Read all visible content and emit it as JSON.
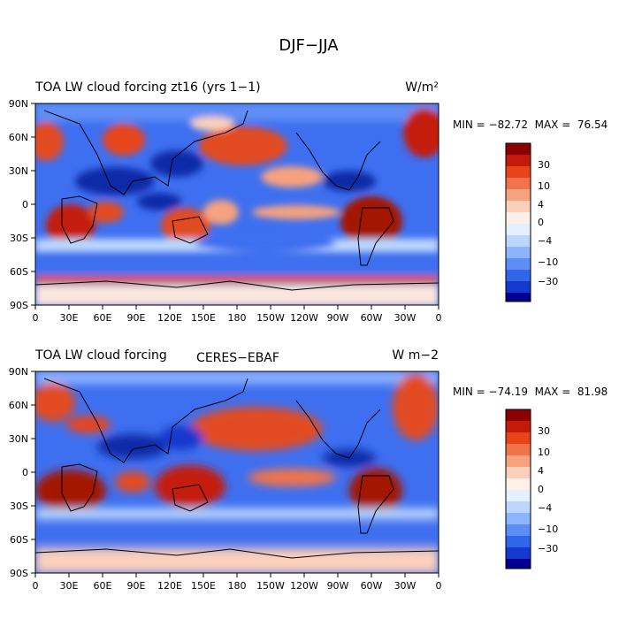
{
  "figure": {
    "title": "DJF−JJA"
  },
  "panels": [
    {
      "id": "model",
      "title_left": "TOA LW cloud forcing zt16 (yrs 1−1)",
      "title_center": "",
      "units": "W/m²",
      "stats": "MIN = −82.72  MAX =  76.54",
      "colorbar_labels": [
        "30",
        "10",
        "4",
        "0",
        "−4",
        "−10",
        "−30"
      ]
    },
    {
      "id": "obs",
      "title_left": "TOA LW cloud forcing",
      "title_center": "CERES−EBAF",
      "units": "W m−2",
      "stats": "MIN = −74.19  MAX =  81.98",
      "colorbar_labels": [
        "30",
        "10",
        "4",
        "0",
        "−4",
        "−10",
        "−30"
      ]
    }
  ],
  "axes": {
    "lat_ticks": [
      "90N",
      "60N",
      "30N",
      "0",
      "30S",
      "60S",
      "90S"
    ],
    "lon_ticks": [
      "0",
      "30E",
      "60E",
      "90E",
      "120E",
      "150E",
      "180",
      "150W",
      "120W",
      "90W",
      "60W",
      "30W",
      "0"
    ]
  },
  "colorbar_colors": [
    "#8b0000",
    "#c41a0a",
    "#e8441c",
    "#f2734a",
    "#f7a27f",
    "#fbd0bb",
    "#fdf0e6",
    "#e4efff",
    "#bcd7ff",
    "#8fb4ff",
    "#5e8ef5",
    "#3166ea",
    "#1439cc",
    "#000090"
  ],
  "map_colors": {
    "strong_positive": "#a31404",
    "positive": "#e24b22",
    "weak_positive": "#f7a27f",
    "neutral": "#fbe6dc",
    "weak_negative": "#bcd7ff",
    "negative": "#3e6ff0",
    "strong_negative": "#0c2aa8"
  }
}
